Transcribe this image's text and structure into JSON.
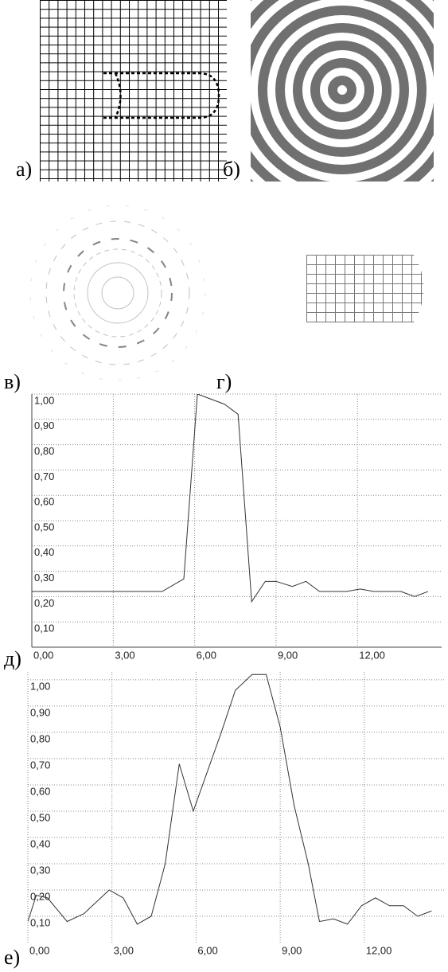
{
  "panel_labels": [
    "а)",
    "б)",
    "в)",
    "г)",
    "д)",
    "е)"
  ],
  "chart_data": [
    {
      "type": "line",
      "color": "#333333",
      "grid": true,
      "x": [
        0,
        4.8,
        5.6,
        6.1,
        7.1,
        7.6,
        8.1,
        8.6,
        9.0,
        9.6,
        10.1,
        10.6,
        11.1,
        11.6,
        12.1,
        12.6,
        13.1,
        13.6,
        14.1,
        14.6
      ],
      "values": [
        0.22,
        0.22,
        0.27,
        1.0,
        0.96,
        0.92,
        0.18,
        0.26,
        0.26,
        0.24,
        0.26,
        0.22,
        0.22,
        0.22,
        0.23,
        0.22,
        0.22,
        0.22,
        0.2,
        0.22
      ],
      "xlim": [
        0,
        15.1
      ],
      "ylim": [
        0,
        1.0
      ],
      "xticks": [
        {
          "value": 0,
          "label": "0,00"
        },
        {
          "value": 3,
          "label": "3,00"
        },
        {
          "value": 6,
          "label": "6,00"
        },
        {
          "value": 9,
          "label": "9,00"
        },
        {
          "value": 12,
          "label": "12,00"
        }
      ],
      "yticks": [
        {
          "value": 0.1,
          "label": "0,10"
        },
        {
          "value": 0.2,
          "label": "0,20"
        },
        {
          "value": 0.3,
          "label": "0,30"
        },
        {
          "value": 0.4,
          "label": "0,40"
        },
        {
          "value": 0.5,
          "label": "0,50"
        },
        {
          "value": 0.6,
          "label": "0,60"
        },
        {
          "value": 0.7,
          "label": "0,70"
        },
        {
          "value": 0.8,
          "label": "0,80"
        },
        {
          "value": 0.9,
          "label": "0,90"
        },
        {
          "value": 1.0,
          "label": "1,00"
        }
      ]
    },
    {
      "type": "line",
      "color": "#333333",
      "grid": true,
      "x": [
        0,
        0.3,
        0.7,
        1.4,
        2.0,
        2.9,
        3.4,
        3.9,
        4.4,
        4.9,
        5.4,
        5.9,
        6.4,
        6.9,
        7.4,
        8.0,
        8.5,
        9.0,
        9.5,
        10.0,
        10.4,
        10.9,
        11.4,
        11.9,
        12.4,
        12.9,
        13.4,
        13.9,
        14.4
      ],
      "values": [
        0.08,
        0.18,
        0.17,
        0.08,
        0.11,
        0.2,
        0.17,
        0.07,
        0.1,
        0.3,
        0.68,
        0.5,
        0.65,
        0.8,
        0.96,
        1.02,
        1.02,
        0.82,
        0.52,
        0.3,
        0.08,
        0.09,
        0.07,
        0.14,
        0.17,
        0.14,
        0.14,
        0.1,
        0.12
      ],
      "xlim": [
        0,
        14.9
      ],
      "ylim": [
        0,
        1.03
      ],
      "xticks": [
        {
          "value": 0,
          "label": "0,00"
        },
        {
          "value": 3,
          "label": "3,00"
        },
        {
          "value": 6,
          "label": "6,00"
        },
        {
          "value": 9,
          "label": "9,00"
        },
        {
          "value": 12,
          "label": "12,00"
        }
      ],
      "yticks": [
        {
          "value": 0.1,
          "label": "0,10"
        },
        {
          "value": 0.2,
          "label": "0,20"
        },
        {
          "value": 0.3,
          "label": "0,30"
        },
        {
          "value": 0.4,
          "label": "0,40"
        },
        {
          "value": 0.5,
          "label": "0,50"
        },
        {
          "value": 0.6,
          "label": "0,60"
        },
        {
          "value": 0.7,
          "label": "0,70"
        },
        {
          "value": 0.8,
          "label": "0,80"
        },
        {
          "value": 0.9,
          "label": "0,90"
        },
        {
          "value": 1.0,
          "label": "1,00"
        }
      ]
    }
  ]
}
